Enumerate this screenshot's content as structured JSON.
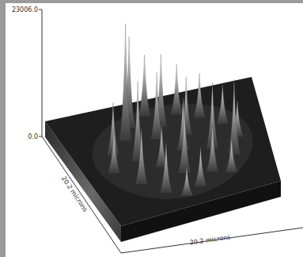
{
  "chart_data": {
    "type": "surface",
    "x_label": "20.2 microns",
    "y_label": "20.2 microns",
    "xlim": [
      0,
      20.2
    ],
    "ylim": [
      0,
      20.2
    ],
    "zlim": [
      0,
      23006
    ],
    "zticks": [
      {
        "value": 0,
        "label": "0.0"
      },
      {
        "value": 23006,
        "label": "23006.0"
      }
    ],
    "peaks": {
      "x": [
        12,
        9,
        14,
        16,
        10,
        7,
        12,
        17,
        9,
        6,
        14,
        11,
        16,
        4,
        6,
        8,
        13,
        15,
        10,
        3,
        5,
        11,
        7,
        9
      ],
      "y": [
        16.5,
        17.5,
        15,
        13,
        15,
        16,
        12.5,
        10,
        13,
        14,
        9,
        10,
        7,
        12,
        10,
        8,
        5,
        4,
        6,
        9,
        6,
        3,
        3.5,
        2
      ],
      "z": [
        9000,
        11000,
        8000,
        7000,
        13000,
        16500,
        10500,
        6500,
        12000,
        21100,
        12000,
        9500,
        13500,
        9500,
        14500,
        7500,
        8500,
        6000,
        11500,
        8000,
        10000,
        7000,
        9000,
        5000
      ]
    }
  }
}
